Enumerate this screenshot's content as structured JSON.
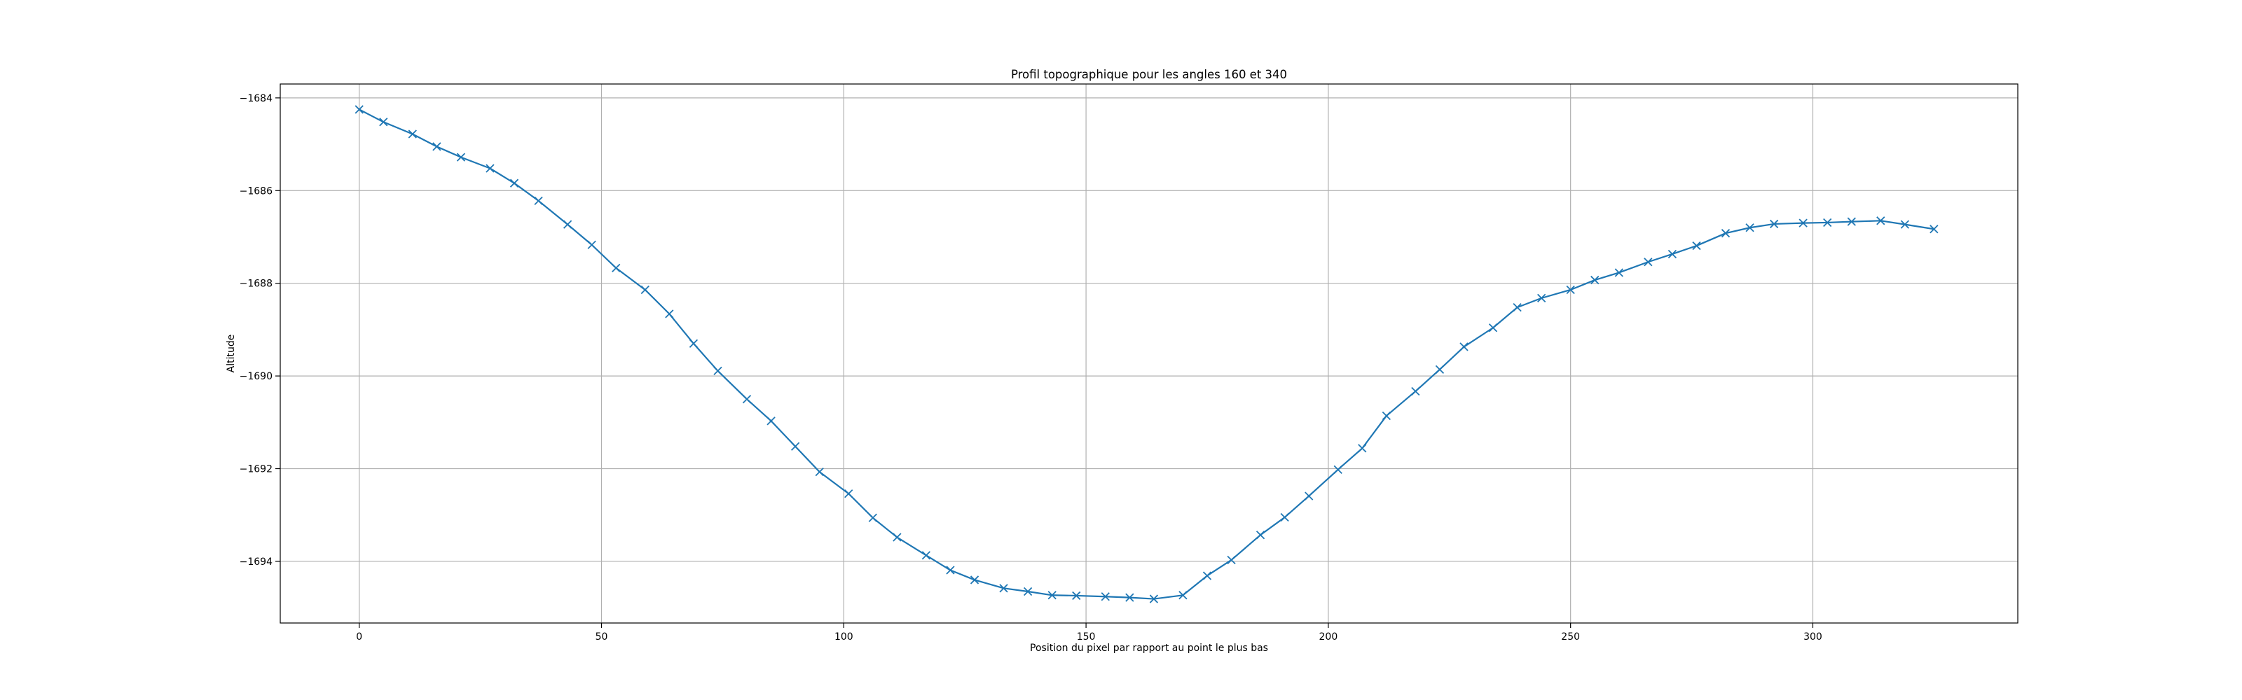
{
  "chart_data": {
    "type": "line",
    "title": "Profil topographique pour les angles 160 et 340",
    "xlabel": "Position du pixel par rapport au point le plus bas",
    "ylabel": "Altitude",
    "xlim": [
      -16.3,
      342.3
    ],
    "ylim": [
      -1695.33,
      -1683.7
    ],
    "xticks": [
      0,
      50,
      100,
      150,
      200,
      250,
      300
    ],
    "yticks": [
      -1694,
      -1692,
      -1690,
      -1688,
      -1686,
      -1684
    ],
    "ytick_labels": [
      "−1694",
      "−1692",
      "−1690",
      "−1688",
      "−1686",
      "−1684"
    ],
    "grid": true,
    "marker": "x",
    "line_color": "#1f77b4",
    "series": [
      {
        "x": [
          0,
          5,
          11,
          16,
          21,
          27,
          32,
          37,
          43,
          48,
          53,
          59,
          64,
          69,
          74,
          80,
          85,
          90,
          95,
          101,
          106,
          111,
          117,
          122,
          127,
          133,
          138,
          143,
          148,
          154,
          159,
          164,
          170,
          175,
          180,
          186,
          191,
          196,
          202,
          207,
          212,
          218,
          223,
          228,
          234,
          239,
          244,
          250,
          255,
          260,
          266,
          271,
          276,
          282,
          287,
          292,
          298,
          303,
          308,
          314,
          319,
          325
        ],
        "y": [
          -1684.25,
          -1684.52,
          -1684.78,
          -1685.05,
          -1685.28,
          -1685.52,
          -1685.84,
          -1686.22,
          -1686.73,
          -1687.17,
          -1687.67,
          -1688.14,
          -1688.66,
          -1689.3,
          -1689.89,
          -1690.5,
          -1690.97,
          -1691.52,
          -1692.07,
          -1692.54,
          -1693.06,
          -1693.48,
          -1693.87,
          -1694.19,
          -1694.4,
          -1694.58,
          -1694.65,
          -1694.73,
          -1694.74,
          -1694.76,
          -1694.78,
          -1694.81,
          -1694.73,
          -1694.31,
          -1693.97,
          -1693.43,
          -1693.05,
          -1692.59,
          -1692.02,
          -1691.56,
          -1690.86,
          -1690.33,
          -1689.86,
          -1689.37,
          -1688.96,
          -1688.52,
          -1688.32,
          -1688.14,
          -1687.93,
          -1687.77,
          -1687.54,
          -1687.37,
          -1687.19,
          -1686.92,
          -1686.8,
          -1686.72,
          -1686.7,
          -1686.69,
          -1686.67,
          -1686.65,
          -1686.73,
          -1686.83
        ]
      }
    ]
  }
}
